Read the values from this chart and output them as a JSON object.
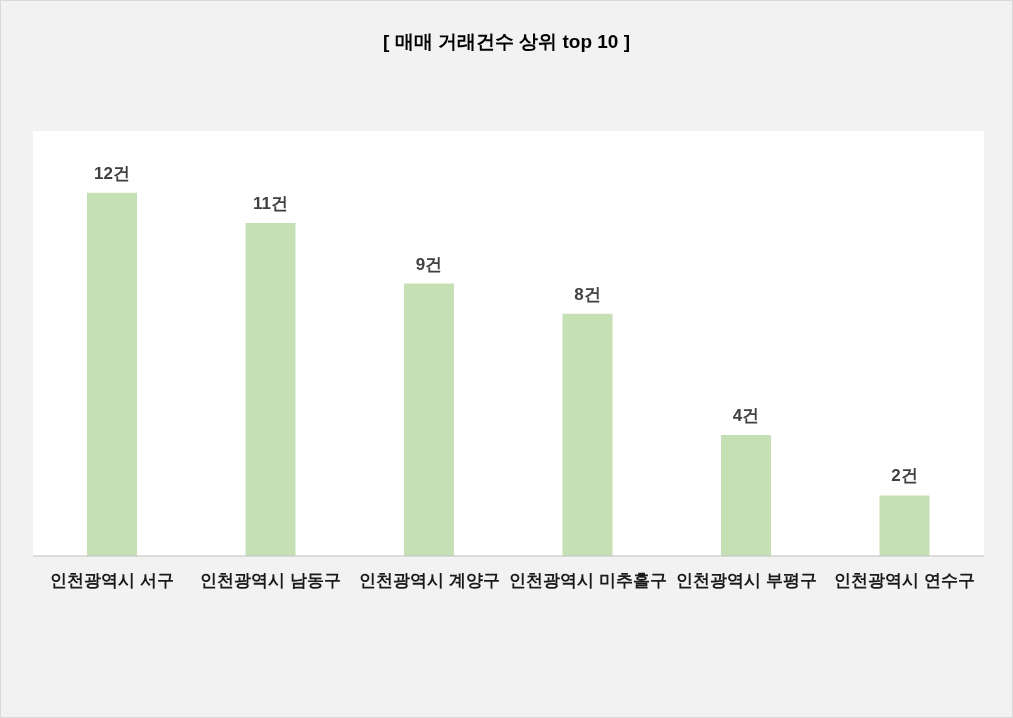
{
  "chart_data": {
    "type": "bar",
    "title": "[ 매매 거래건수 상위 top 10 ]",
    "categories": [
      "인천광역시 서구",
      "인천광역시 남동구",
      "인천광역시 계양구",
      "인천광역시 미추홀구",
      "인천광역시 부평구",
      "인천광역시 연수구"
    ],
    "values": [
      12,
      11,
      9,
      8,
      4,
      2
    ],
    "value_labels": [
      "12건",
      "11건",
      "9건",
      "8건",
      "4건",
      "2건"
    ],
    "color": "#c5e0b4"
  }
}
